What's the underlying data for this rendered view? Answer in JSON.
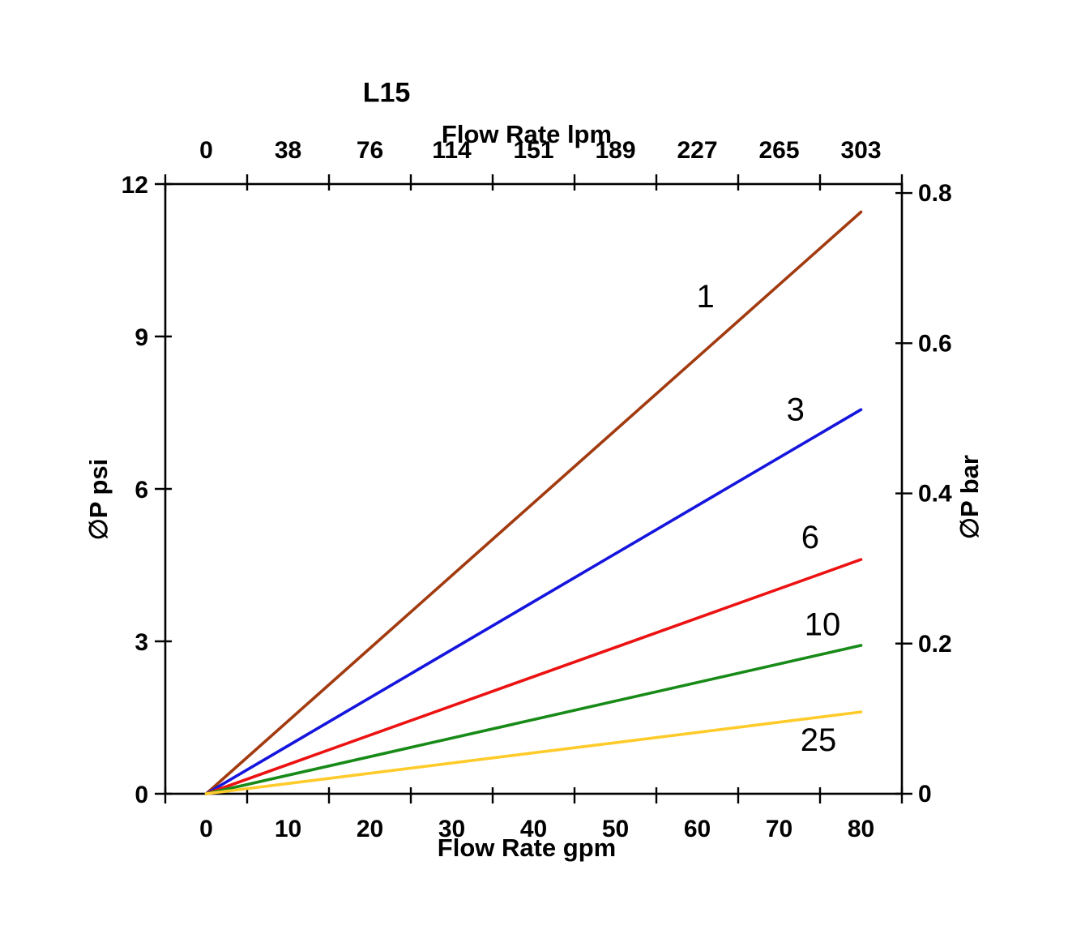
{
  "title": "L15",
  "chart_data": {
    "type": "line",
    "title": "L15",
    "grid": false,
    "legend": "none (inline curve labels)",
    "x_bottom": {
      "label": "Flow Rate gpm",
      "ticks": [
        0,
        10,
        20,
        30,
        40,
        50,
        60,
        70,
        80
      ],
      "range": [
        0,
        80
      ],
      "tick_placement": "labels centered between tick marks"
    },
    "x_top": {
      "label": "Flow Rate lpm",
      "ticks": [
        0,
        38,
        76,
        114,
        151,
        189,
        227,
        265,
        303
      ],
      "range": [
        0,
        303
      ]
    },
    "y_left": {
      "label": "∅P psi",
      "ticks": [
        0,
        3,
        6,
        9,
        12
      ],
      "range": [
        0,
        12
      ]
    },
    "y_right": {
      "label": "∅P bar",
      "values": [
        0,
        0.2,
        0.4,
        0.6,
        0.8
      ],
      "labels": [
        "0",
        "0.2",
        "0.4",
        "0.6",
        "0.8"
      ],
      "range": [
        0,
        0.8
      ],
      "psi_per_bar": 14.78
    },
    "series": [
      {
        "name": "1",
        "color": "#A23B10",
        "gpm": [
          0,
          80
        ],
        "psi": [
          0,
          11.45
        ],
        "label_at": {
          "gpm": 61.0,
          "psi": 9.8
        }
      },
      {
        "name": "3",
        "color": "#1515DE",
        "gpm": [
          0,
          80
        ],
        "psi": [
          0,
          7.56
        ],
        "label_at": {
          "gpm": 72.0,
          "psi": 7.57
        }
      },
      {
        "name": "6",
        "color": "#EC1212",
        "gpm": [
          0,
          80
        ],
        "psi": [
          0,
          4.61
        ],
        "label_at": {
          "gpm": 73.8,
          "psi": 5.06
        }
      },
      {
        "name": "10",
        "color": "#178A17",
        "gpm": [
          0,
          80
        ],
        "psi": [
          0,
          2.92
        ],
        "label_at": {
          "gpm": 75.3,
          "psi": 3.34
        }
      },
      {
        "name": "25",
        "color": "#FFCB2A",
        "gpm": [
          0,
          80
        ],
        "psi": [
          0,
          1.61
        ],
        "label_at": {
          "gpm": 74.8,
          "psi": 1.07
        }
      }
    ]
  }
}
